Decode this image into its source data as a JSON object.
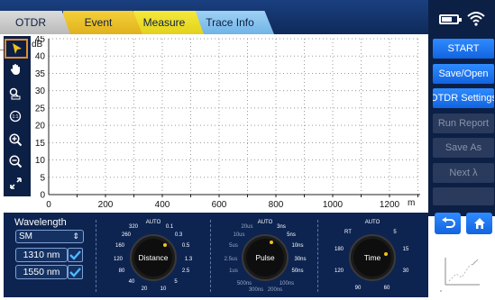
{
  "tabs": [
    {
      "label": "OTDR"
    },
    {
      "label": "Event"
    },
    {
      "label": "Measure"
    },
    {
      "label": "Trace Info"
    }
  ],
  "sidebar": {
    "buttons": [
      {
        "label": "START",
        "enabled": true
      },
      {
        "label": "Save/Open",
        "enabled": true
      },
      {
        "label": "OTDR Settings",
        "enabled": true
      },
      {
        "label": "Run Report",
        "enabled": false
      },
      {
        "label": "Save As",
        "enabled": false
      },
      {
        "label": "Next λ",
        "enabled": false
      }
    ]
  },
  "plot": {
    "y_unit": "dB",
    "x_unit": "m",
    "y_ticks": [
      "0",
      "5",
      "10",
      "15",
      "20",
      "25",
      "30",
      "35",
      "40",
      "45"
    ],
    "x_ticks": [
      "0",
      "200",
      "400",
      "600",
      "800",
      "1000",
      "1200"
    ]
  },
  "wavelength": {
    "title": "Wavelength",
    "mode": "SM",
    "items": [
      {
        "label": "1310 nm",
        "checked": true
      },
      {
        "label": "1550 nm",
        "checked": true
      }
    ]
  },
  "knobs": {
    "distance": {
      "name": "Distance",
      "auto": "AUTO",
      "ticks": [
        "320",
        "0.1",
        "260",
        "0.3",
        "160",
        "0.5",
        "120",
        "1.3",
        "80",
        "2.5",
        "40",
        "5",
        "20",
        "10"
      ]
    },
    "pulse": {
      "name": "Pulse",
      "auto": "AUTO",
      "ticks": [
        "20us",
        "3ns",
        "10us",
        "5ns",
        "5us",
        "10ns",
        "2.5us",
        "30ns",
        "1us",
        "50ns",
        "500ns",
        "100ns",
        "300ns",
        "200ns"
      ]
    },
    "time": {
      "name": "Time",
      "auto": "AUTO",
      "ticks": [
        "RT",
        "5",
        "180",
        "15",
        "120",
        "30",
        "90",
        "60"
      ]
    }
  },
  "colors": {
    "accent": "#1264e0",
    "dark_panel": "#0c1f45",
    "check": "#4db8ff",
    "knob_indicator": "#f2c21a",
    "toolbar_selected": "#e48a2e"
  }
}
